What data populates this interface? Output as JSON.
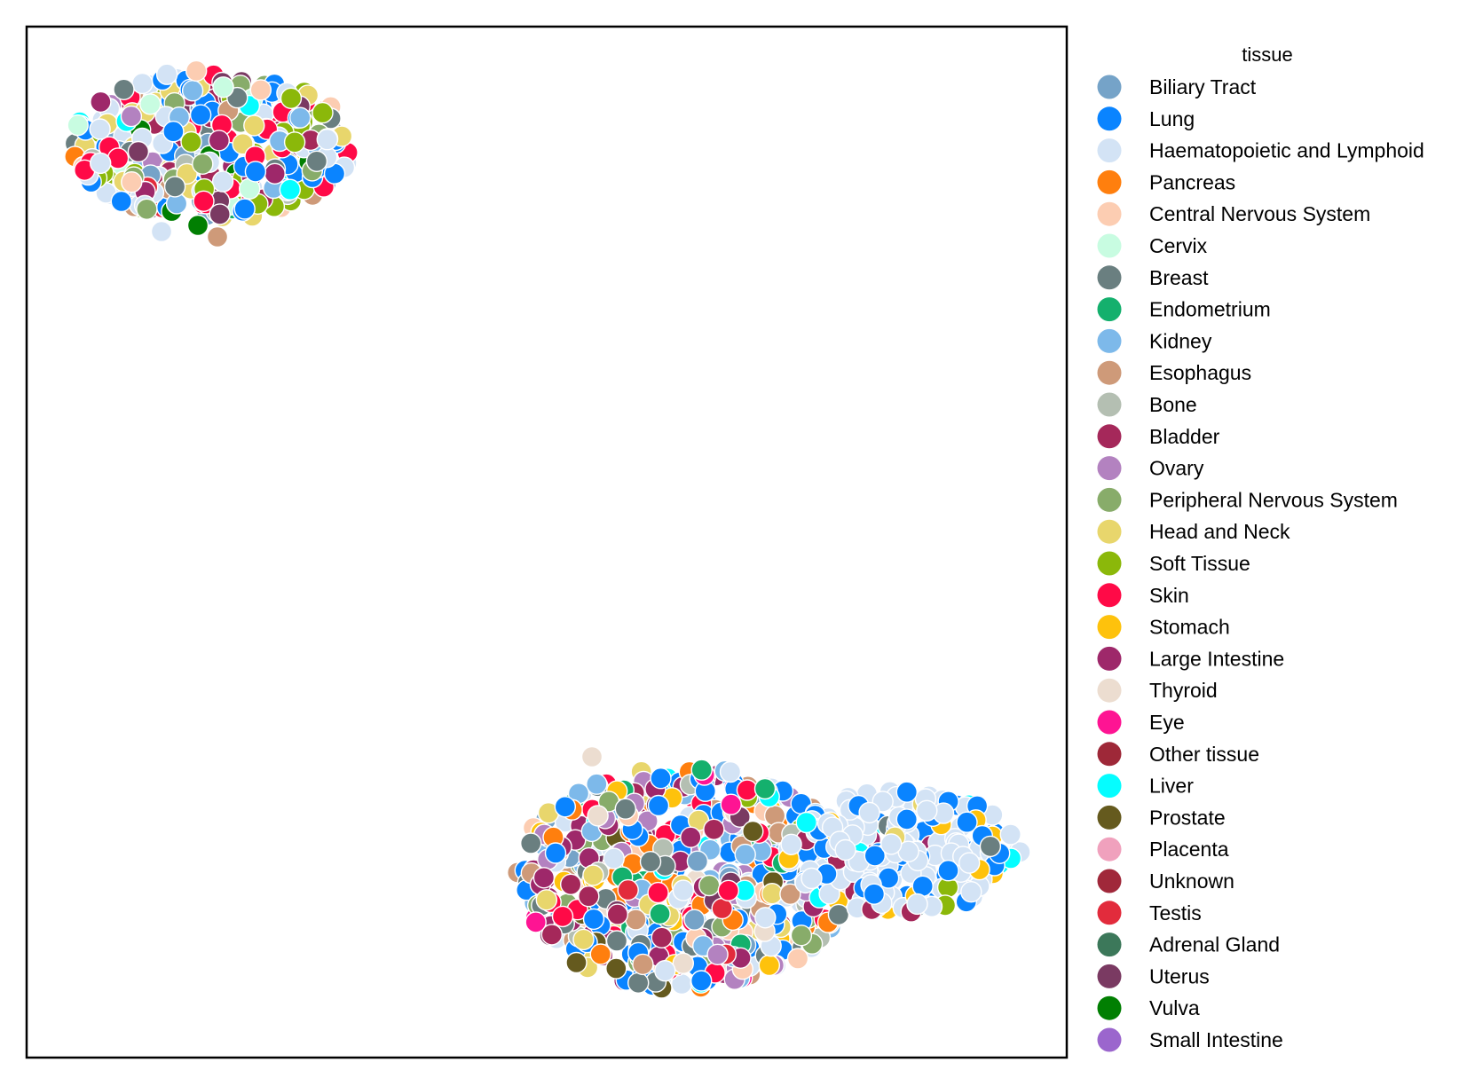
{
  "chart_data": {
    "type": "scatter",
    "title": "",
    "xlabel": "",
    "ylabel": "",
    "axes_visible": false,
    "grid": false,
    "legend": {
      "title": "tissue",
      "placement": "outside-right",
      "entries": [
        {
          "name": "Biliary Tract",
          "color": "#75A3C8"
        },
        {
          "name": "Lung",
          "color": "#0A84FF"
        },
        {
          "name": "Haematopoietic and Lymphoid",
          "color": "#D3E3F5"
        },
        {
          "name": "Pancreas",
          "color": "#FF7F0E"
        },
        {
          "name": "Central Nervous System",
          "color": "#FCCDB2"
        },
        {
          "name": "Cervix",
          "color": "#C8FCE1"
        },
        {
          "name": "Breast",
          "color": "#6A7F80"
        },
        {
          "name": "Endometrium",
          "color": "#14B06D"
        },
        {
          "name": "Kidney",
          "color": "#7DB9EA"
        },
        {
          "name": "Esophagus",
          "color": "#CE9A79"
        },
        {
          "name": "Bone",
          "color": "#B4BFB2"
        },
        {
          "name": "Bladder",
          "color": "#A5285A"
        },
        {
          "name": "Ovary",
          "color": "#B382C0"
        },
        {
          "name": "Peripheral Nervous System",
          "color": "#88AC6A"
        },
        {
          "name": "Head and Neck",
          "color": "#E8D66C"
        },
        {
          "name": "Soft Tissue",
          "color": "#8BB80A"
        },
        {
          "name": "Skin",
          "color": "#FF0A47"
        },
        {
          "name": "Stomach",
          "color": "#FEC20C"
        },
        {
          "name": "Large Intestine",
          "color": "#9E286A"
        },
        {
          "name": "Thyroid",
          "color": "#ECDDD0"
        },
        {
          "name": "Eye",
          "color": "#FE1493"
        },
        {
          "name": "Other tissue",
          "color": "#9E2838"
        },
        {
          "name": "Liver",
          "color": "#05FDFF"
        },
        {
          "name": "Prostate",
          "color": "#655A1E"
        },
        {
          "name": "Placenta",
          "color": "#F0A1BD"
        },
        {
          "name": "Unknown",
          "color": "#A0283A"
        },
        {
          "name": "Testis",
          "color": "#E22B3C"
        },
        {
          "name": "Adrenal Gland",
          "color": "#3C785A"
        },
        {
          "name": "Uterus",
          "color": "#7A3A62"
        },
        {
          "name": "Vulva",
          "color": "#017F02"
        },
        {
          "name": "Small Intestine",
          "color": "#9B66CD"
        }
      ]
    },
    "clusters": [
      {
        "location": "top-left",
        "dominant": [
          "Lung",
          "Haematopoietic and Lymphoid",
          "Skin",
          "Head and Neck",
          "Soft Tissue",
          "Peripheral Nervous System",
          "Bladder"
        ]
      },
      {
        "location": "bottom-center-right",
        "dominant": [
          "Lung",
          "Haematopoietic and Lymphoid",
          "Large Intestine",
          "Ovary",
          "Breast",
          "Skin",
          "Stomach"
        ]
      }
    ]
  }
}
